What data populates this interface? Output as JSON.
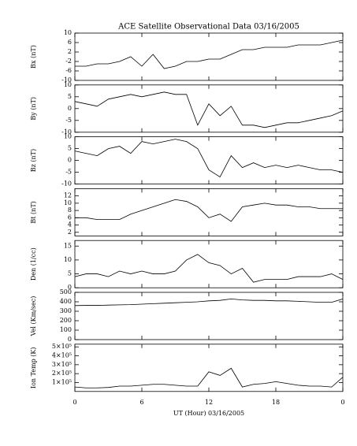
{
  "chart_data": [
    {
      "type": "line",
      "title": "ACE Satellite Observational Data  03/16/2005",
      "y_label": "Bx (nT)",
      "color": "#000000",
      "x": [
        0,
        1,
        2,
        3,
        4,
        5,
        6,
        7,
        8,
        9,
        10,
        11,
        12,
        13,
        14,
        15,
        16,
        17,
        18,
        19,
        20,
        21,
        22,
        23,
        24
      ],
      "values": [
        -4,
        -4,
        -3,
        -3,
        -2,
        0,
        -4,
        1,
        -5,
        -4,
        -2,
        -2,
        -1,
        -1,
        1,
        3,
        3,
        4,
        4,
        4,
        5,
        5,
        5,
        6,
        7
      ],
      "xlim": [
        0,
        24
      ],
      "ylim": [
        -10,
        10
      ],
      "yticks": [
        -10,
        -6,
        -2,
        2,
        6,
        10
      ]
    },
    {
      "type": "line",
      "y_label": "By (nT)",
      "color": "#000000",
      "x": [
        0,
        1,
        2,
        3,
        4,
        5,
        6,
        7,
        8,
        9,
        10,
        11,
        12,
        13,
        14,
        15,
        16,
        17,
        18,
        19,
        20,
        21,
        22,
        23,
        24
      ],
      "values": [
        3,
        2,
        1,
        4,
        5,
        6,
        5,
        6,
        7,
        6,
        6,
        -7,
        2,
        -3,
        1,
        -7,
        -7,
        -8,
        -7,
        -6,
        -6,
        -5,
        -4,
        -3,
        -1
      ],
      "xlim": [
        0,
        24
      ],
      "ylim": [
        -10,
        10
      ],
      "yticks": [
        -10,
        -5,
        0,
        5,
        10
      ]
    },
    {
      "type": "line",
      "y_label": "Bz (nT)",
      "color": "#000000",
      "x": [
        0,
        1,
        2,
        3,
        4,
        5,
        6,
        7,
        8,
        9,
        10,
        11,
        12,
        13,
        14,
        15,
        16,
        17,
        18,
        19,
        20,
        21,
        22,
        23,
        24
      ],
      "values": [
        4,
        3,
        2,
        5,
        6,
        3,
        8,
        7,
        8,
        9,
        8,
        5,
        -4,
        -7,
        2,
        -3,
        -1,
        -3,
        -2,
        -3,
        -2,
        -3,
        -4,
        -4,
        -5
      ],
      "xlim": [
        0,
        24
      ],
      "ylim": [
        -10,
        10
      ],
      "yticks": [
        -10,
        -5,
        0,
        5,
        10
      ]
    },
    {
      "type": "line",
      "y_label": "Bt (nT)",
      "color": "#000000",
      "x": [
        0,
        1,
        2,
        3,
        4,
        5,
        6,
        7,
        8,
        9,
        10,
        11,
        12,
        13,
        14,
        15,
        16,
        17,
        18,
        19,
        20,
        21,
        22,
        23,
        24
      ],
      "values": [
        6,
        6,
        5.5,
        5.5,
        5.5,
        7,
        8,
        9,
        10,
        11,
        10.5,
        9,
        6,
        7,
        5,
        9,
        9.5,
        10,
        9.5,
        9.5,
        9,
        9,
        8.5,
        8.5,
        8.5
      ],
      "xlim": [
        0,
        24
      ],
      "ylim": [
        1,
        14
      ],
      "yticks": [
        2,
        4,
        6,
        8,
        10,
        12
      ]
    },
    {
      "type": "line",
      "y_label": "Den (1/cc)",
      "color": "#000000",
      "x": [
        0,
        1,
        2,
        3,
        4,
        5,
        6,
        7,
        8,
        9,
        10,
        11,
        12,
        13,
        14,
        15,
        16,
        17,
        18,
        19,
        20,
        21,
        22,
        23,
        24
      ],
      "values": [
        4,
        5,
        5,
        4,
        6,
        5,
        6,
        5,
        5,
        6,
        10,
        12,
        9,
        8,
        5,
        7,
        2,
        3,
        3,
        3,
        4,
        4,
        4,
        5,
        3
      ],
      "xlim": [
        0,
        24
      ],
      "ylim": [
        0,
        17
      ],
      "yticks": [
        0,
        5,
        10,
        15
      ]
    },
    {
      "type": "line",
      "y_label": "Vel (Km/sec)",
      "color": "#000000",
      "x": [
        0,
        1,
        2,
        3,
        4,
        5,
        6,
        7,
        8,
        9,
        10,
        11,
        12,
        13,
        14,
        15,
        16,
        17,
        18,
        19,
        20,
        21,
        22,
        23,
        24
      ],
      "values": [
        360,
        362,
        362,
        365,
        368,
        370,
        375,
        380,
        385,
        390,
        395,
        400,
        410,
        415,
        430,
        420,
        415,
        415,
        410,
        410,
        405,
        400,
        395,
        395,
        430
      ],
      "xlim": [
        0,
        24
      ],
      "ylim": [
        0,
        500
      ],
      "yticks": [
        0,
        100,
        200,
        300,
        400,
        500
      ]
    },
    {
      "type": "line",
      "y_label": "Ion Temp (K)",
      "x_label": "UT (Hour)  03/16/2005",
      "color": "#000000",
      "x": [
        0,
        1,
        2,
        3,
        4,
        5,
        6,
        7,
        8,
        9,
        10,
        11,
        12,
        13,
        14,
        15,
        16,
        17,
        18,
        19,
        20,
        21,
        22,
        23,
        24
      ],
      "values": [
        50000,
        40000,
        40000,
        45000,
        60000,
        60000,
        70000,
        80000,
        80000,
        70000,
        60000,
        60000,
        220000,
        180000,
        260000,
        50000,
        80000,
        90000,
        110000,
        90000,
        70000,
        60000,
        60000,
        50000,
        160000
      ],
      "xlim": [
        0,
        24
      ],
      "ylim": [
        0,
        530000
      ],
      "yticks": [
        {
          "value": 100000,
          "label": "1×10⁵"
        },
        {
          "value": 200000,
          "label": "2×10⁵"
        },
        {
          "value": 300000,
          "label": "3×10⁵"
        },
        {
          "value": 400000,
          "label": "4×10⁵"
        },
        {
          "value": 500000,
          "label": "5×10⁵"
        }
      ],
      "xticks": [
        0,
        6,
        12,
        18,
        {
          "value": 24,
          "label": "0"
        }
      ]
    }
  ]
}
